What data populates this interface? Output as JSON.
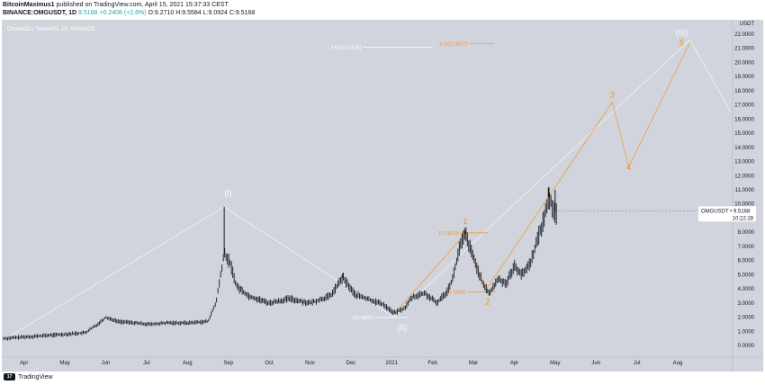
{
  "header": {
    "publisher": "BitcoinMaximus1",
    "published_text": "published on TradingView.com, April 15, 2021 15:37:33 CEST",
    "symbol_line": "BINANCE:OMGUSDT, 1D",
    "last_price": "9.5168",
    "change": "+0.2408 (+2.6%)",
    "open": "O:9.2710",
    "high": "H:9.5584",
    "low": "L:9.0924",
    "close": "C:9.5168"
  },
  "chart_title": "OmiseGO / TetherUS, 1D, BINANCE",
  "footer": {
    "brand": "TradingView",
    "logo_text": "17"
  },
  "colors": {
    "background": "#d1d4dc",
    "wave": "#f7931a",
    "candle": "#131722",
    "wave_white": "#ffffff"
  },
  "chart_data": {
    "type": "candlestick",
    "currency": "USDT",
    "ylim": [
      -0.5,
      22.5
    ],
    "y_ticks": [
      "0.0000",
      "1.0000",
      "2.0000",
      "3.0000",
      "4.0000",
      "5.0000",
      "6.0000",
      "7.0000",
      "8.0000",
      "9.0000",
      "10.0000",
      "11.0000",
      "12.0000",
      "13.0000",
      "14.0000",
      "15.0000",
      "16.0000",
      "17.0000",
      "18.0000",
      "19.0000",
      "20.0000",
      "21.0000",
      "22.0000"
    ],
    "x_ticks": [
      {
        "label": "Apr",
        "t": 0.5
      },
      {
        "label": "May",
        "t": 1.5
      },
      {
        "label": "Jun",
        "t": 2.5
      },
      {
        "label": "Jul",
        "t": 3.5
      },
      {
        "label": "Aug",
        "t": 4.5
      },
      {
        "label": "Sep",
        "t": 5.5
      },
      {
        "label": "Oct",
        "t": 6.5
      },
      {
        "label": "Nov",
        "t": 7.5
      },
      {
        "label": "Dec",
        "t": 8.5
      },
      {
        "label": "2021",
        "t": 9.5
      },
      {
        "label": "Feb",
        "t": 10.5
      },
      {
        "label": "Mar",
        "t": 11.5
      },
      {
        "label": "Apr",
        "t": 12.5
      },
      {
        "label": "May",
        "t": 13.5
      },
      {
        "label": "Jun",
        "t": 14.5
      },
      {
        "label": "Jul",
        "t": 15.5
      },
      {
        "label": "Aug",
        "t": 16.5
      }
    ],
    "price_path": [
      [
        0,
        0.5
      ],
      [
        0.5,
        0.6
      ],
      [
        1.0,
        0.7
      ],
      [
        1.5,
        0.8
      ],
      [
        2.0,
        0.9
      ],
      [
        2.3,
        1.5
      ],
      [
        2.5,
        2.0
      ],
      [
        2.8,
        1.7
      ],
      [
        3.2,
        1.6
      ],
      [
        3.6,
        1.5
      ],
      [
        4.0,
        1.6
      ],
      [
        4.5,
        1.6
      ],
      [
        5.0,
        1.7
      ],
      [
        5.2,
        3.0
      ],
      [
        5.4,
        6.5
      ],
      [
        5.55,
        5.8
      ],
      [
        5.7,
        4.2
      ],
      [
        6.0,
        3.5
      ],
      [
        6.5,
        3.0
      ],
      [
        7.0,
        3.3
      ],
      [
        7.5,
        3.0
      ],
      [
        8.0,
        3.5
      ],
      [
        8.3,
        4.8
      ],
      [
        8.6,
        3.6
      ],
      [
        9.0,
        3.2
      ],
      [
        9.3,
        2.9
      ],
      [
        9.55,
        2.3
      ],
      [
        9.8,
        2.6
      ],
      [
        10.0,
        3.4
      ],
      [
        10.3,
        3.7
      ],
      [
        10.6,
        3.0
      ],
      [
        10.85,
        3.8
      ],
      [
        11.0,
        4.8
      ],
      [
        11.15,
        6.8
      ],
      [
        11.3,
        7.9
      ],
      [
        11.45,
        6.6
      ],
      [
        11.6,
        5.4
      ],
      [
        11.75,
        4.2
      ],
      [
        11.9,
        3.7
      ],
      [
        12.1,
        4.7
      ],
      [
        12.3,
        4.4
      ],
      [
        12.5,
        5.6
      ],
      [
        12.7,
        5.0
      ],
      [
        12.9,
        5.9
      ],
      [
        13.05,
        7.3
      ],
      [
        13.2,
        8.7
      ],
      [
        13.35,
        10.5
      ],
      [
        13.45,
        9.7
      ],
      [
        13.55,
        9.2
      ]
    ],
    "spikes": [
      {
        "t": 5.4,
        "high": 9.8
      },
      {
        "t": 8.3,
        "high": 5.1
      },
      {
        "t": 11.3,
        "high": 8.1
      },
      {
        "t": 13.35,
        "high": 11.2
      },
      {
        "t": 13.5,
        "high": 11.0
      }
    ],
    "last_price_label": "OMGUSDT",
    "last_price_value": "9.5168",
    "countdown": "10:22:28",
    "fib_levels": [
      {
        "label": "2.61(21.0816)",
        "t0": 8.8,
        "t1": 10.5,
        "y": 21.08
      },
      {
        "label": "4.2(21.3327)",
        "t0": 11.4,
        "t1": 12.0,
        "y": 21.33
      },
      {
        "label": "1(7.9619)",
        "t0": 11.2,
        "t1": 11.85,
        "y": 7.96
      },
      {
        "label": "0(1.9807)",
        "t0": 9.1,
        "t1": 9.9,
        "y": 1.98
      },
      {
        "label": "(3.7856)",
        "t0": 11.35,
        "t1": 12.05,
        "y": 3.79
      }
    ],
    "waves": [
      {
        "label": "(I)",
        "t": 5.5,
        "y": 10.6,
        "color": "white"
      },
      {
        "label": "(II)",
        "t": 9.75,
        "y": 1.1,
        "color": "white"
      },
      {
        "label": "(III)",
        "t": 16.6,
        "y": 21.9,
        "color": "white"
      },
      {
        "label": "1",
        "t": 11.3,
        "y": 8.6,
        "color": "orange"
      },
      {
        "label": "2",
        "t": 11.85,
        "y": 2.9,
        "color": "orange"
      },
      {
        "label": "3",
        "t": 14.9,
        "y": 17.5,
        "color": "orange"
      },
      {
        "label": "4",
        "t": 15.3,
        "y": 12.4,
        "color": "orange"
      },
      {
        "label": "5",
        "t": 16.6,
        "y": 21.2,
        "color": "orange"
      }
    ],
    "projection_path": [
      [
        9.55,
        2.2
      ],
      [
        11.3,
        7.9
      ],
      [
        11.8,
        3.9
      ],
      [
        14.9,
        17.2
      ],
      [
        15.3,
        12.6
      ],
      [
        16.8,
        21.4
      ]
    ],
    "primary_path": [
      [
        0,
        0.4
      ],
      [
        5.4,
        9.8
      ],
      [
        9.55,
        2.0
      ],
      [
        16.8,
        21.6
      ],
      [
        17.8,
        16.5
      ]
    ]
  }
}
